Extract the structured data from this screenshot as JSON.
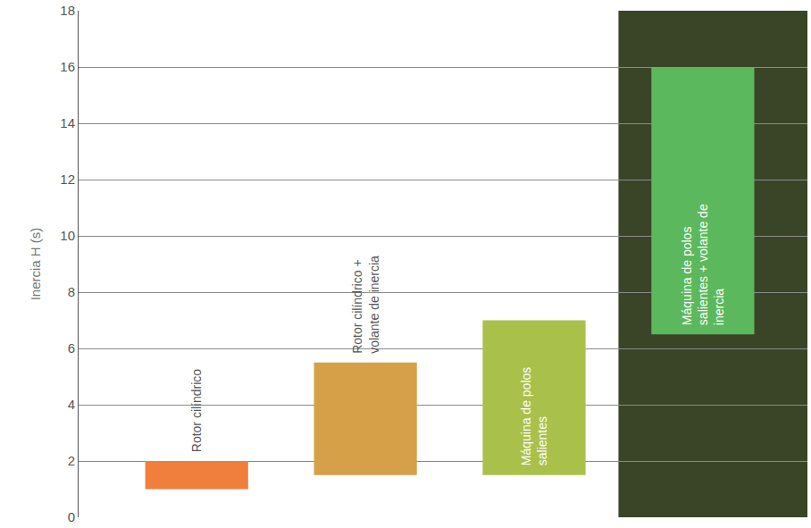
{
  "chart_data": {
    "type": "floating_bar",
    "y_label": "Inercia H (s)",
    "categories": [
      "Rotor cilíndrico",
      "Rotor cilíndrico + volante de inercia",
      "Máquina de polos salientes",
      "Máquina de polos salientes + volante de inercia"
    ],
    "low": [
      1,
      1.5,
      1.5,
      6.5
    ],
    "high": [
      2,
      5.5,
      7,
      16
    ],
    "colors": [
      "#f07f3c",
      "#d5a047",
      "#a9c04b",
      "#5cb85c"
    ],
    "ylim": [
      0,
      18
    ],
    "yticks": [
      0,
      2,
      4,
      6,
      8,
      10,
      12,
      14,
      16,
      18
    ],
    "grid": true,
    "tick_labels": "y"
  }
}
